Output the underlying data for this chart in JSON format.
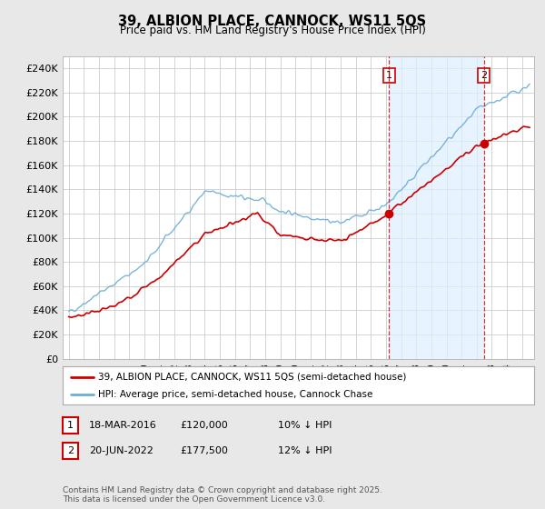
{
  "title": "39, ALBION PLACE, CANNOCK, WS11 5QS",
  "subtitle": "Price paid vs. HM Land Registry's House Price Index (HPI)",
  "ylabel_ticks": [
    "£0",
    "£20K",
    "£40K",
    "£60K",
    "£80K",
    "£100K",
    "£120K",
    "£140K",
    "£160K",
    "£180K",
    "£200K",
    "£220K",
    "£240K"
  ],
  "ytick_values": [
    0,
    20000,
    40000,
    60000,
    80000,
    100000,
    120000,
    140000,
    160000,
    180000,
    200000,
    220000,
    240000
  ],
  "hpi_color": "#6baed6",
  "price_color": "#cc0000",
  "shade_color": "#ddeeff",
  "annotation1": [
    "18-MAR-2016",
    "£120,000",
    "10% ↓ HPI"
  ],
  "annotation2": [
    "20-JUN-2022",
    "£177,500",
    "12% ↓ HPI"
  ],
  "legend_label1": "39, ALBION PLACE, CANNOCK, WS11 5QS (semi-detached house)",
  "legend_label2": "HPI: Average price, semi-detached house, Cannock Chase",
  "footnote": "Contains HM Land Registry data © Crown copyright and database right 2025.\nThis data is licensed under the Open Government Licence v3.0.",
  "bg_color": "#e8e8e8",
  "plot_bg_color": "#ffffff",
  "grid_color": "#cccccc",
  "date1": 2016.21,
  "date2": 2022.47,
  "price_at_date1": 120000,
  "price_at_date2": 177500,
  "xmin": 1994.6,
  "xmax": 2025.8,
  "ymin": 0,
  "ymax": 250000
}
